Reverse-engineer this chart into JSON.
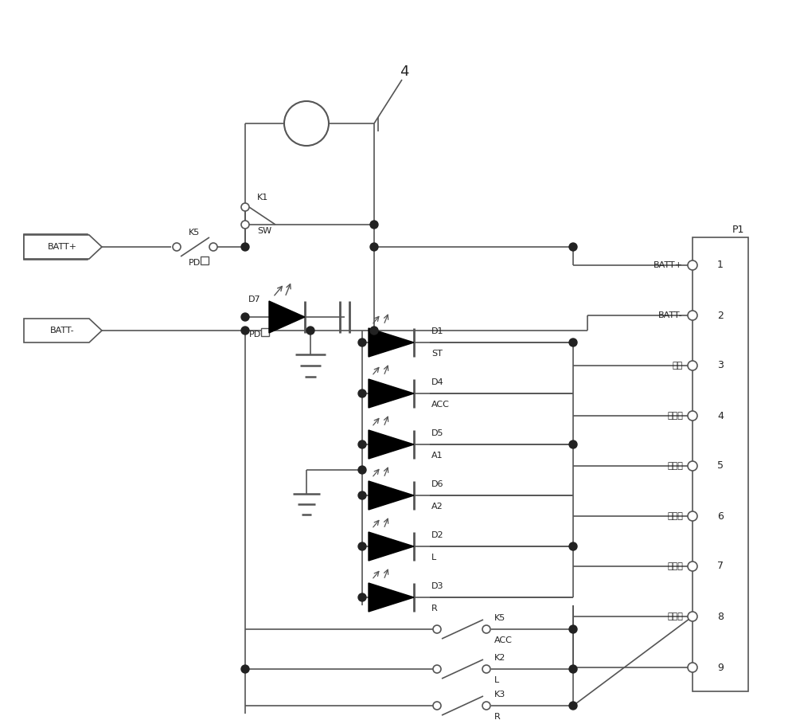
{
  "bg": "#ffffff",
  "lc": "#555555",
  "lw": 1.2,
  "tc": "#222222",
  "fs_small": 8,
  "fs_med": 9,
  "fs_large": 12,
  "p1_pins": [
    "BATT+",
    "BATT-",
    "启动",
    "电门锁",
    "上息火",
    "下息火",
    "方向灯",
    "方向灯",
    ""
  ],
  "p1_nums": [
    "1",
    "2",
    "3",
    "4",
    "5",
    "6",
    "7",
    "8",
    "9"
  ],
  "diode_names": [
    "D1",
    "D4",
    "D5",
    "D6",
    "D2",
    "D3"
  ],
  "diode_subs": [
    "ST",
    "ACC",
    "A1",
    "A2",
    "L",
    "R"
  ],
  "sw_names": [
    "K5",
    "K2",
    "K3"
  ],
  "sw_subs": [
    "ACC",
    "L",
    "R"
  ]
}
